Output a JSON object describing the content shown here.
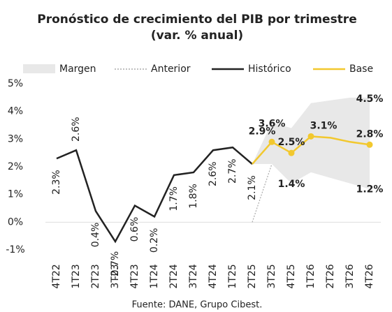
{
  "chart_data": {
    "type": "line",
    "title": "Pronóstico de crecimiento del PIB por trimestre",
    "subtitle": "(var. % anual)",
    "footer": "Fuente: DANE, Grupo Cibest.",
    "categories": [
      "4T22",
      "1T23",
      "2T23",
      "3T23",
      "4T23",
      "1T24",
      "2T24",
      "3T24",
      "4T24",
      "1T25",
      "2T25",
      "3T25",
      "4T25",
      "1T26",
      "2T26",
      "3T26",
      "4T26"
    ],
    "ylim": [
      -1,
      5
    ],
    "yticks": [
      {
        "value": -1,
        "label": "-1%"
      },
      {
        "value": 0,
        "label": "0%"
      },
      {
        "value": 1,
        "label": "1%"
      },
      {
        "value": 2,
        "label": "2%"
      },
      {
        "value": 3,
        "label": "3%"
      },
      {
        "value": 4,
        "label": "4%"
      },
      {
        "value": 5,
        "label": "5%"
      }
    ],
    "zero_line": true,
    "band": {
      "name": "Margen",
      "color": "#e8e8e8",
      "upper": [
        null,
        null,
        null,
        null,
        null,
        null,
        null,
        null,
        null,
        null,
        2.1,
        3.6,
        3.4,
        4.3,
        4.4,
        4.5,
        4.5
      ],
      "lower": [
        null,
        null,
        null,
        null,
        null,
        null,
        null,
        null,
        null,
        null,
        2.1,
        2.1,
        1.4,
        1.8,
        1.6,
        1.4,
        1.2
      ],
      "upper_labels": [
        null,
        null,
        null,
        null,
        null,
        null,
        null,
        null,
        null,
        null,
        null,
        "3.6%",
        null,
        null,
        null,
        null,
        "4.5%"
      ],
      "lower_labels": [
        null,
        null,
        null,
        null,
        null,
        null,
        null,
        null,
        null,
        null,
        null,
        null,
        "1.4%",
        null,
        null,
        null,
        "1.2%"
      ],
      "upper_label_color": "#1a8a5a",
      "lower_label_color": "#e8873a"
    },
    "series": [
      {
        "name": "Anterior",
        "color": "#aaaaaa",
        "style": "dotted",
        "values": [
          null,
          null,
          null,
          null,
          null,
          null,
          null,
          null,
          null,
          null,
          0,
          2.1,
          null,
          null,
          null,
          null,
          null
        ]
      },
      {
        "name": "Histórico",
        "color": "#222222",
        "style": "solid",
        "values": [
          2.3,
          2.6,
          0.4,
          -0.7,
          0.6,
          0.2,
          1.7,
          1.8,
          2.6,
          2.7,
          2.1,
          null,
          null,
          null,
          null,
          null,
          null
        ],
        "value_labels": [
          "2.3%",
          "2.6%",
          "0.4%",
          "-0.7%",
          "0.6%",
          "0.2%",
          "1.7%",
          "1.8%",
          "2.6%",
          "2.7%",
          "2.1%",
          null,
          null,
          null,
          null,
          null,
          null
        ]
      },
      {
        "name": "Base",
        "color": "#f2c82e",
        "style": "solid",
        "values": [
          null,
          null,
          null,
          null,
          null,
          null,
          null,
          null,
          null,
          null,
          2.1,
          2.9,
          2.5,
          3.1,
          3.05,
          2.9,
          2.8
        ],
        "value_labels": [
          null,
          null,
          null,
          null,
          null,
          null,
          null,
          null,
          null,
          null,
          null,
          "2.9%",
          "2.5%",
          "3.1%",
          null,
          null,
          "2.8%"
        ]
      }
    ]
  }
}
